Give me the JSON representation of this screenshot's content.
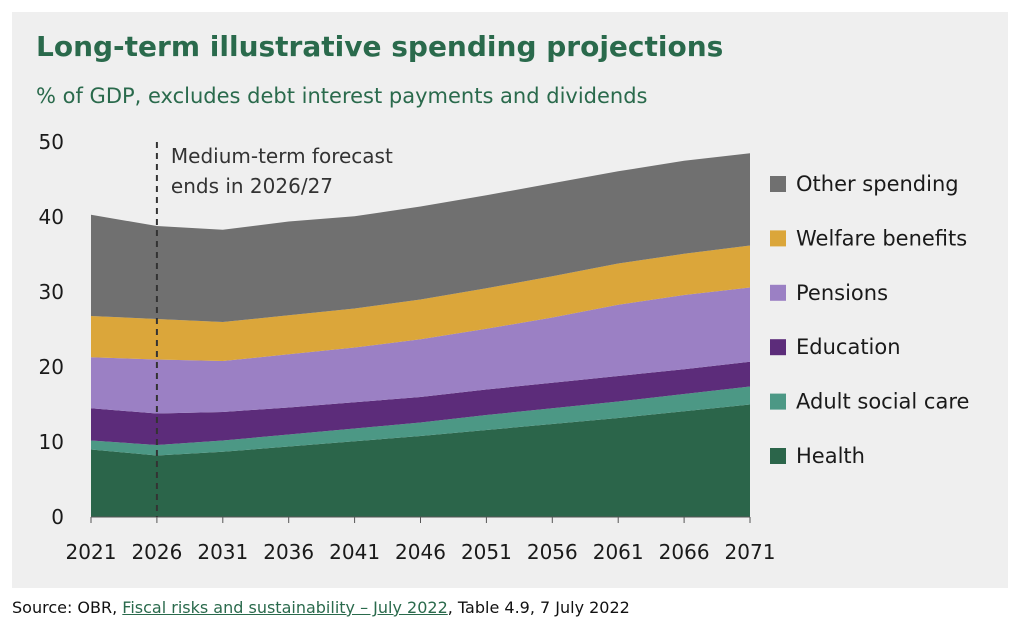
{
  "title": "Long-term illustrative spending projections",
  "subtitle": "% of GDP, excludes debt interest payments and dividends",
  "source": {
    "prefix": "Source: OBR, ",
    "link_text": "Fiscal risks and sustainability – July 2022",
    "suffix": ", Table 4.9, 7 July 2022"
  },
  "colors": {
    "panel": "#efefef",
    "title": "#2a6a4c"
  },
  "chart_data": {
    "type": "area",
    "stacked": true,
    "x": [
      2021,
      2026,
      2031,
      2036,
      2041,
      2046,
      2051,
      2056,
      2061,
      2066,
      2071
    ],
    "xticks": [
      "2021",
      "2026",
      "2031",
      "2036",
      "2041",
      "2046",
      "2051",
      "2056",
      "2061",
      "2066",
      "2071"
    ],
    "ylim": [
      0,
      50
    ],
    "yticks": [
      "0",
      "10",
      "20",
      "30",
      "40",
      "50"
    ],
    "grid": false,
    "legend_position": "right",
    "annotation": {
      "x": 2026,
      "lines": [
        "Medium-term forecast",
        "ends in 2026/27"
      ]
    },
    "series": [
      {
        "name": "Health",
        "color": "#2b654a",
        "values": [
          9.0,
          8.2,
          8.7,
          9.4,
          10.1,
          10.8,
          11.6,
          12.4,
          13.2,
          14.1,
          15.0
        ]
      },
      {
        "name": "Adult social care",
        "color": "#4c9885",
        "values": [
          1.2,
          1.4,
          1.5,
          1.6,
          1.7,
          1.8,
          2.0,
          2.1,
          2.2,
          2.3,
          2.4
        ]
      },
      {
        "name": "Education",
        "color": "#5c2c7a",
        "values": [
          4.3,
          4.2,
          3.8,
          3.6,
          3.5,
          3.4,
          3.4,
          3.4,
          3.4,
          3.3,
          3.3
        ]
      },
      {
        "name": "Pensions",
        "color": "#9b80c4",
        "values": [
          6.8,
          7.2,
          6.8,
          7.1,
          7.3,
          7.7,
          8.1,
          8.7,
          9.5,
          9.9,
          9.9
        ]
      },
      {
        "name": "Welfare benefits",
        "color": "#dba63a",
        "values": [
          5.5,
          5.4,
          5.2,
          5.2,
          5.2,
          5.3,
          5.4,
          5.5,
          5.5,
          5.5,
          5.6
        ]
      },
      {
        "name": "Other spending",
        "color": "#707070",
        "values": [
          13.5,
          12.4,
          12.3,
          12.5,
          12.3,
          12.4,
          12.4,
          12.4,
          12.3,
          12.4,
          12.3
        ]
      }
    ]
  }
}
